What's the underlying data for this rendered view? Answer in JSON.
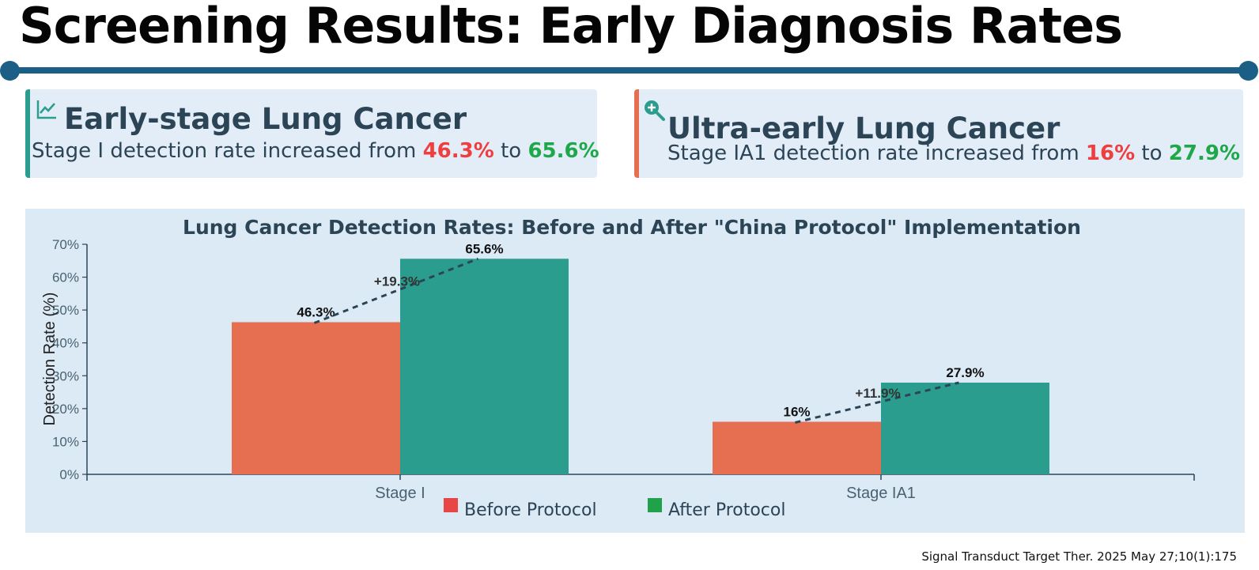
{
  "page": {
    "title": "Screening Results: Early Diagnosis Rates",
    "citation": "Signal Transduct Target Ther. 2025 May 27;10(1):175"
  },
  "colors": {
    "accent": "#1c5f86",
    "teal": "#2a9d8f",
    "orange": "#e76f51",
    "before_text": "#ef3e3e",
    "after_text": "#1ea84a",
    "legend_before": "#e84545",
    "legend_after": "#1fa24a"
  },
  "cards": [
    {
      "icon": "chart-line-icon",
      "title": "Early-stage Lung Cancer",
      "text_prefix": "Stage I detection rate increased from",
      "before": "46.3%",
      "connector": "to",
      "after": "65.6%"
    },
    {
      "icon": "magnify-plus-icon",
      "title": "Ultra-early Lung Cancer",
      "text_prefix": "Stage IA1 detection rate increased from",
      "before": "16%",
      "connector": "to",
      "after": "27.9%"
    }
  ],
  "chart_data": {
    "type": "bar",
    "title": "Lung Cancer Detection Rates: Before and After \"China Protocol\" Implementation",
    "xlabel": "",
    "ylabel": "Detection Rate (%)",
    "ylim": [
      0,
      70
    ],
    "yticks": [
      0,
      10,
      20,
      30,
      40,
      50,
      60,
      70
    ],
    "ytick_labels": [
      "0%",
      "10%",
      "20%",
      "30%",
      "40%",
      "50%",
      "60%",
      "70%"
    ],
    "categories": [
      "Stage I",
      "Stage IA1"
    ],
    "series": [
      {
        "name": "Before Protocol",
        "values": [
          46.3,
          16
        ],
        "labels": [
          "46.3%",
          "16%"
        ],
        "color": "#e76f51"
      },
      {
        "name": "After Protocol",
        "values": [
          65.6,
          27.9
        ],
        "labels": [
          "65.6%",
          "27.9%"
        ],
        "color": "#2a9d8f"
      }
    ],
    "annotations": [
      "+19.3%",
      "+11.9%"
    ],
    "legend": {
      "position": "bottom",
      "items": [
        {
          "label": "Before Protocol",
          "color": "#e84545"
        },
        {
          "label": "After Protocol",
          "color": "#1fa24a"
        }
      ]
    },
    "grid": false
  }
}
